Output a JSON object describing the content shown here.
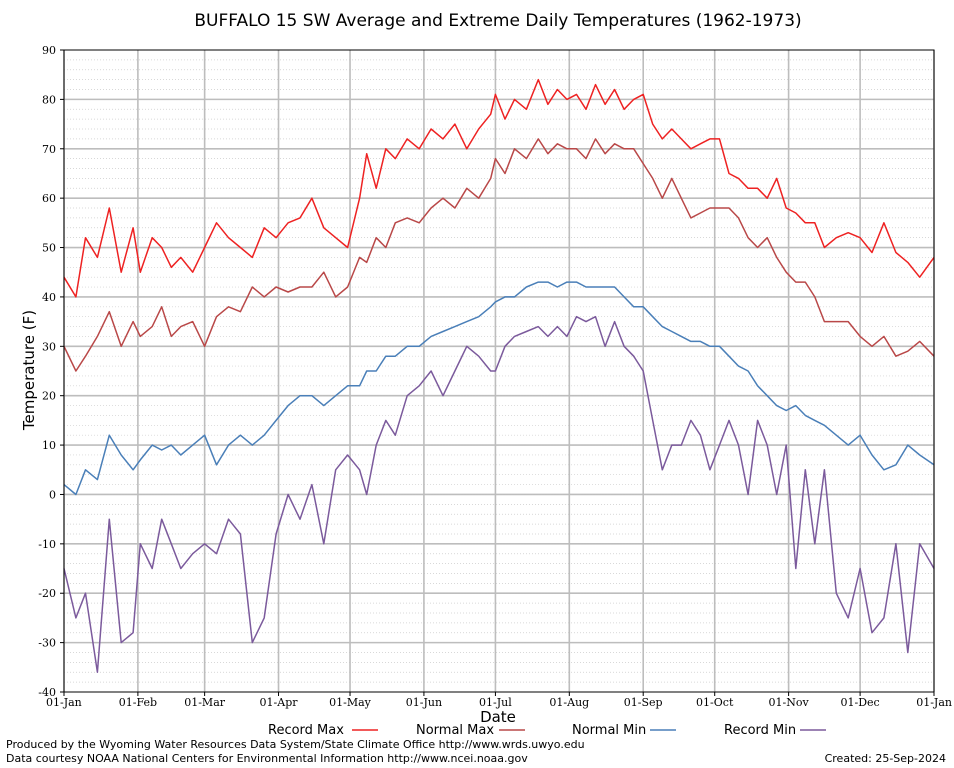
{
  "chart_data": {
    "type": "line",
    "title": "BUFFALO 15 SW Average and Extreme Daily Temperatures (1962-1973)",
    "xlabel": "Date",
    "ylabel": "Temperature (F)",
    "ylim": [
      -40,
      90
    ],
    "yticks": [
      90,
      80,
      70,
      60,
      50,
      40,
      30,
      20,
      10,
      0,
      -10,
      -20,
      -30,
      -40
    ],
    "xlim": [
      1,
      366
    ],
    "xticks": [
      {
        "day": 1,
        "label": "01-Jan"
      },
      {
        "day": 32,
        "label": "01-Feb"
      },
      {
        "day": 60,
        "label": "01-Mar"
      },
      {
        "day": 91,
        "label": "01-Apr"
      },
      {
        "day": 121,
        "label": "01-May"
      },
      {
        "day": 152,
        "label": "01-Jun"
      },
      {
        "day": 182,
        "label": "01-Jul"
      },
      {
        "day": 213,
        "label": "01-Aug"
      },
      {
        "day": 244,
        "label": "01-Sep"
      },
      {
        "day": 274,
        "label": "01-Oct"
      },
      {
        "day": 305,
        "label": "01-Nov"
      },
      {
        "day": 335,
        "label": "01-Dec"
      },
      {
        "day": 366,
        "label": "01-Jan"
      }
    ],
    "grid": true,
    "legend_position": "bottom",
    "series": [
      {
        "name": "Record Max",
        "color": "#ee2222",
        "x": [
          1,
          6,
          10,
          15,
          20,
          25,
          30,
          33,
          38,
          42,
          46,
          50,
          55,
          60,
          65,
          70,
          75,
          80,
          85,
          90,
          95,
          100,
          105,
          110,
          115,
          120,
          125,
          128,
          132,
          136,
          140,
          145,
          150,
          155,
          160,
          165,
          170,
          175,
          180,
          182,
          186,
          190,
          195,
          200,
          204,
          208,
          212,
          216,
          220,
          224,
          228,
          232,
          236,
          240,
          244,
          248,
          252,
          256,
          260,
          264,
          268,
          272,
          276,
          280,
          284,
          288,
          292,
          296,
          300,
          304,
          308,
          312,
          316,
          320,
          325,
          330,
          335,
          340,
          345,
          350,
          355,
          360,
          366
        ],
        "y": [
          44,
          40,
          52,
          48,
          58,
          45,
          54,
          45,
          52,
          50,
          46,
          48,
          45,
          50,
          55,
          52,
          50,
          48,
          54,
          52,
          55,
          56,
          60,
          54,
          52,
          50,
          60,
          69,
          62,
          70,
          68,
          72,
          70,
          74,
          72,
          75,
          70,
          74,
          77,
          81,
          76,
          80,
          78,
          84,
          79,
          82,
          80,
          81,
          78,
          83,
          79,
          82,
          78,
          80,
          81,
          75,
          72,
          74,
          72,
          70,
          71,
          72,
          72,
          65,
          64,
          62,
          62,
          60,
          64,
          58,
          57,
          55,
          55,
          50,
          52,
          53,
          52,
          49,
          55,
          49,
          47,
          44,
          48
        ]
      },
      {
        "name": "Normal Max",
        "color": "#b94848",
        "x": [
          1,
          6,
          10,
          15,
          20,
          25,
          30,
          33,
          38,
          42,
          46,
          50,
          55,
          60,
          65,
          70,
          75,
          80,
          85,
          90,
          95,
          100,
          105,
          110,
          115,
          120,
          125,
          128,
          132,
          136,
          140,
          145,
          150,
          155,
          160,
          165,
          170,
          175,
          180,
          182,
          186,
          190,
          195,
          200,
          204,
          208,
          212,
          216,
          220,
          224,
          228,
          232,
          236,
          240,
          244,
          248,
          252,
          256,
          260,
          264,
          268,
          272,
          276,
          280,
          284,
          288,
          292,
          296,
          300,
          304,
          308,
          312,
          316,
          320,
          325,
          330,
          335,
          340,
          345,
          350,
          355,
          360,
          366
        ],
        "y": [
          30,
          25,
          28,
          32,
          37,
          30,
          35,
          32,
          34,
          38,
          32,
          34,
          35,
          30,
          36,
          38,
          37,
          42,
          40,
          42,
          41,
          42,
          42,
          45,
          40,
          42,
          48,
          47,
          52,
          50,
          55,
          56,
          55,
          58,
          60,
          58,
          62,
          60,
          64,
          68,
          65,
          70,
          68,
          72,
          69,
          71,
          70,
          70,
          68,
          72,
          69,
          71,
          70,
          70,
          67,
          64,
          60,
          64,
          60,
          56,
          57,
          58,
          58,
          58,
          56,
          52,
          50,
          52,
          48,
          45,
          43,
          43,
          40,
          35,
          35,
          35,
          32,
          30,
          32,
          28,
          29,
          31,
          28
        ]
      },
      {
        "name": "Normal Min",
        "color": "#4a7fb8",
        "x": [
          1,
          6,
          10,
          15,
          20,
          25,
          30,
          33,
          38,
          42,
          46,
          50,
          55,
          60,
          65,
          70,
          75,
          80,
          85,
          90,
          95,
          100,
          105,
          110,
          115,
          120,
          125,
          128,
          132,
          136,
          140,
          145,
          150,
          155,
          160,
          165,
          170,
          175,
          180,
          182,
          186,
          190,
          195,
          200,
          204,
          208,
          212,
          216,
          220,
          224,
          228,
          232,
          236,
          240,
          244,
          248,
          252,
          256,
          260,
          264,
          268,
          272,
          276,
          280,
          284,
          288,
          292,
          296,
          300,
          304,
          308,
          312,
          316,
          320,
          325,
          330,
          335,
          340,
          345,
          350,
          355,
          360,
          366
        ],
        "y": [
          2,
          0,
          5,
          3,
          12,
          8,
          5,
          7,
          10,
          9,
          10,
          8,
          10,
          12,
          6,
          10,
          12,
          10,
          12,
          15,
          18,
          20,
          20,
          18,
          20,
          22,
          22,
          25,
          25,
          28,
          28,
          30,
          30,
          32,
          33,
          34,
          35,
          36,
          38,
          39,
          40,
          40,
          42,
          43,
          43,
          42,
          43,
          43,
          42,
          42,
          42,
          42,
          40,
          38,
          38,
          36,
          34,
          33,
          32,
          31,
          31,
          30,
          30,
          28,
          26,
          25,
          22,
          20,
          18,
          17,
          18,
          16,
          15,
          14,
          12,
          10,
          12,
          8,
          5,
          6,
          10,
          8,
          6
        ]
      },
      {
        "name": "Record Min",
        "color": "#7b5a9c",
        "x": [
          1,
          6,
          10,
          15,
          20,
          25,
          30,
          33,
          38,
          42,
          46,
          50,
          55,
          60,
          65,
          70,
          75,
          80,
          85,
          90,
          95,
          100,
          105,
          110,
          115,
          120,
          125,
          128,
          132,
          136,
          140,
          145,
          150,
          155,
          160,
          165,
          170,
          175,
          180,
          182,
          186,
          190,
          195,
          200,
          204,
          208,
          212,
          216,
          220,
          224,
          228,
          232,
          236,
          240,
          244,
          248,
          252,
          256,
          260,
          264,
          268,
          272,
          276,
          280,
          284,
          288,
          292,
          296,
          300,
          304,
          308,
          312,
          316,
          320,
          325,
          330,
          335,
          340,
          345,
          350,
          355,
          360,
          366
        ],
        "y": [
          -15,
          -25,
          -20,
          -36,
          -5,
          -30,
          -28,
          -10,
          -15,
          -5,
          -10,
          -15,
          -12,
          -10,
          -12,
          -5,
          -8,
          -30,
          -25,
          -8,
          0,
          -5,
          2,
          -10,
          5,
          8,
          5,
          0,
          10,
          15,
          12,
          20,
          22,
          25,
          20,
          25,
          30,
          28,
          25,
          25,
          30,
          32,
          33,
          34,
          32,
          34,
          32,
          36,
          35,
          36,
          30,
          35,
          30,
          28,
          25,
          15,
          5,
          10,
          10,
          15,
          12,
          5,
          10,
          15,
          10,
          0,
          15,
          10,
          0,
          10,
          -15,
          5,
          -10,
          5,
          -20,
          -25,
          -15,
          -28,
          -25,
          -10,
          -32,
          -10,
          -15
        ]
      }
    ]
  },
  "footer": {
    "credit_line_1": "Produced by the Wyoming Water Resources Data System/State Climate Office http://www.wrds.uwyo.edu",
    "credit_line_2": "Data courtesy NOAA National Centers for Environmental Information http://www.ncei.noaa.gov",
    "created": "Created:  25-Sep-2024"
  }
}
